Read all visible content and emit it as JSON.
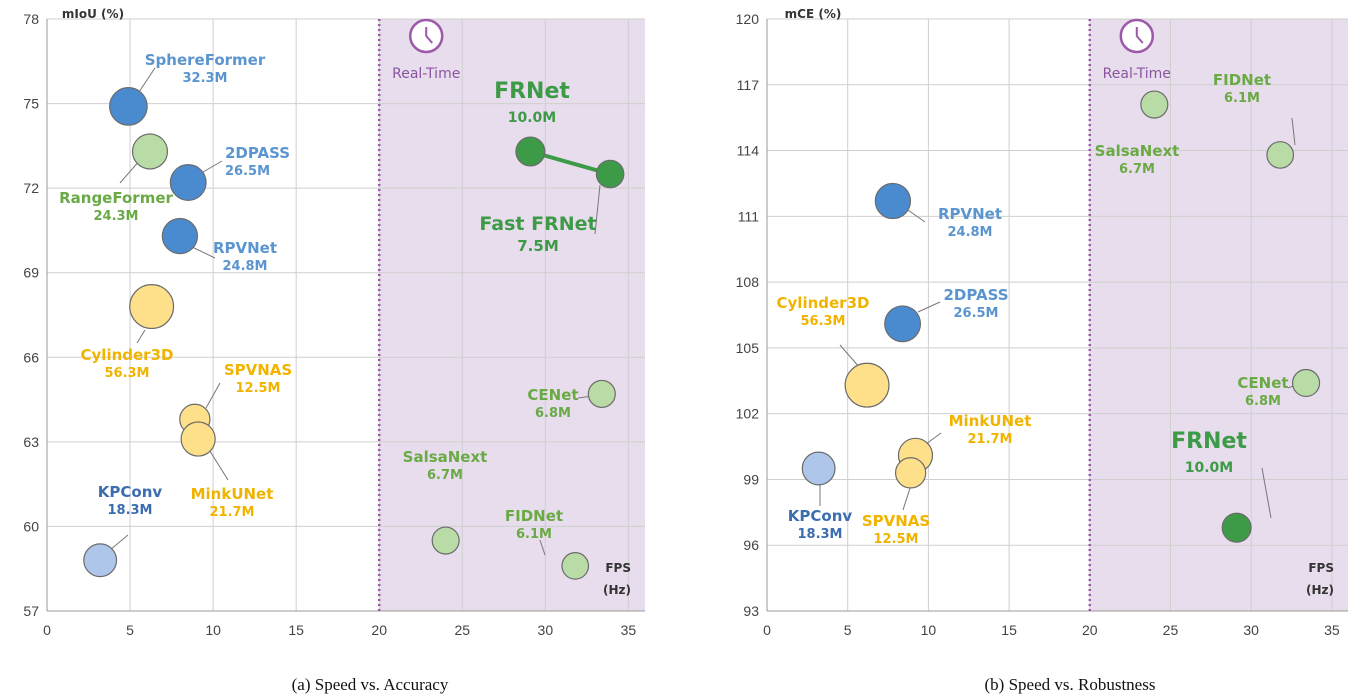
{
  "colors": {
    "blue": "#4a8bd0",
    "light_blue": "#aec6ea",
    "yellow": "#ffe08a",
    "yellow_text": "#f0b400",
    "green": "#3d9a47",
    "light_green": "#b9dba6",
    "green_text": "#6aaa45",
    "blue_text": "#5b95cf",
    "dark_blue_text": "#3c6db0",
    "realtime_band": "#e8ddec",
    "realtime_line": "#9b5aa8",
    "realtime_text": "#8a55a0"
  },
  "chart_data": [
    {
      "type": "scatter",
      "caption": "(a) Speed vs. Accuracy",
      "ylabel": "mIoU (%)",
      "xlabel_line1": "FPS",
      "xlabel_line2": "(Hz)",
      "xlim": [
        0,
        36
      ],
      "ylim": [
        57,
        78
      ],
      "xticks": [
        0,
        5,
        10,
        15,
        20,
        25,
        30,
        35
      ],
      "yticks": [
        57,
        60,
        63,
        66,
        69,
        72,
        75,
        78
      ],
      "grid": true,
      "realtime": {
        "x": 20,
        "label": "Real-Time"
      },
      "points": [
        {
          "name": "SphereFormer",
          "size_label": "32.3M",
          "x": 4.9,
          "y": 74.9,
          "params": 32.3,
          "color": "blue",
          "text_color": "blue_text"
        },
        {
          "name": "RangeFormer",
          "size_label": "24.3M",
          "x": 6.2,
          "y": 73.3,
          "params": 24.3,
          "color": "light_green",
          "text_color": "green_text"
        },
        {
          "name": "2DPASS",
          "size_label": "26.5M",
          "x": 8.5,
          "y": 72.2,
          "params": 26.5,
          "color": "blue",
          "text_color": "blue_text"
        },
        {
          "name": "RPVNet",
          "size_label": "24.8M",
          "x": 8.0,
          "y": 70.3,
          "params": 24.8,
          "color": "blue",
          "text_color": "blue_text"
        },
        {
          "name": "Cylinder3D",
          "size_label": "56.3M",
          "x": 6.3,
          "y": 67.8,
          "params": 56.3,
          "color": "yellow",
          "text_color": "yellow_text"
        },
        {
          "name": "SPVNAS",
          "size_label": "12.5M",
          "x": 8.9,
          "y": 63.8,
          "params": 12.5,
          "color": "yellow",
          "text_color": "yellow_text"
        },
        {
          "name": "MinkUNet",
          "size_label": "21.7M",
          "x": 9.1,
          "y": 63.1,
          "params": 21.7,
          "color": "yellow",
          "text_color": "yellow_text"
        },
        {
          "name": "KPConv",
          "size_label": "18.3M",
          "x": 3.2,
          "y": 58.8,
          "params": 18.3,
          "color": "light_blue",
          "text_color": "dark_blue_text"
        },
        {
          "name": "FRNet",
          "size_label": "10.0M",
          "x": 29.1,
          "y": 73.3,
          "params": 10.0,
          "color": "green",
          "text_color": "green"
        },
        {
          "name": "Fast FRNet",
          "size_label": "7.5M",
          "x": 33.9,
          "y": 72.5,
          "params": 7.5,
          "color": "green",
          "text_color": "green"
        },
        {
          "name": "CENet",
          "size_label": "6.8M",
          "x": 33.4,
          "y": 64.7,
          "params": 6.8,
          "color": "light_green",
          "text_color": "green_text"
        },
        {
          "name": "SalsaNext",
          "size_label": "6.7M",
          "x": 24.0,
          "y": 59.5,
          "params": 6.7,
          "color": "light_green",
          "text_color": "green_text"
        },
        {
          "name": "FIDNet",
          "size_label": "6.1M",
          "x": 31.8,
          "y": 58.6,
          "params": 6.1,
          "color": "light_green",
          "text_color": "green_text"
        }
      ]
    },
    {
      "type": "scatter",
      "caption": "(b) Speed vs. Robustness",
      "ylabel": "mCE (%)",
      "xlabel_line1": "FPS",
      "xlabel_line2": "(Hz)",
      "xlim": [
        0,
        36
      ],
      "ylim": [
        93,
        120
      ],
      "xticks": [
        0,
        5,
        10,
        15,
        20,
        25,
        30,
        35
      ],
      "yticks": [
        93,
        96,
        99,
        102,
        105,
        108,
        111,
        114,
        117,
        120
      ],
      "grid": true,
      "realtime": {
        "x": 20,
        "label": "Real-Time"
      },
      "points": [
        {
          "name": "SalsaNext",
          "size_label": "6.7M",
          "x": 24.0,
          "y": 116.1,
          "params": 6.7,
          "color": "light_green",
          "text_color": "green_text"
        },
        {
          "name": "FIDNet",
          "size_label": "6.1M",
          "x": 31.8,
          "y": 113.8,
          "params": 6.1,
          "color": "light_green",
          "text_color": "green_text"
        },
        {
          "name": "RPVNet",
          "size_label": "24.8M",
          "x": 7.8,
          "y": 111.7,
          "params": 24.8,
          "color": "blue",
          "text_color": "blue_text"
        },
        {
          "name": "2DPASS",
          "size_label": "26.5M",
          "x": 8.4,
          "y": 106.1,
          "params": 26.5,
          "color": "blue",
          "text_color": "blue_text"
        },
        {
          "name": "Cylinder3D",
          "size_label": "56.3M",
          "x": 6.2,
          "y": 103.3,
          "params": 56.3,
          "color": "yellow",
          "text_color": "yellow_text"
        },
        {
          "name": "CENet",
          "size_label": "6.8M",
          "x": 33.4,
          "y": 103.4,
          "params": 6.8,
          "color": "light_green",
          "text_color": "green_text"
        },
        {
          "name": "MinkUNet",
          "size_label": "21.7M",
          "x": 9.2,
          "y": 100.1,
          "params": 21.7,
          "color": "yellow",
          "text_color": "yellow_text"
        },
        {
          "name": "SPVNAS",
          "size_label": "12.5M",
          "x": 8.9,
          "y": 99.3,
          "params": 12.5,
          "color": "yellow",
          "text_color": "yellow_text"
        },
        {
          "name": "KPConv",
          "size_label": "18.3M",
          "x": 3.2,
          "y": 99.5,
          "params": 18.3,
          "color": "light_blue",
          "text_color": "dark_blue_text"
        },
        {
          "name": "FRNet",
          "size_label": "10.0M",
          "x": 29.1,
          "y": 96.8,
          "params": 10.0,
          "color": "green",
          "text_color": "green"
        }
      ]
    }
  ]
}
